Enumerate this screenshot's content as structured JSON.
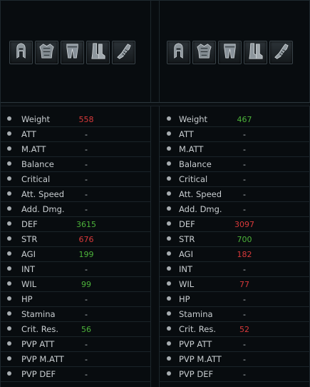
{
  "colors": {
    "better": "#4cb33a",
    "worse": "#d9393a",
    "neutral": "#b9bfc3",
    "label": "#c9ced1"
  },
  "sets": [
    {
      "gear_icons": [
        "helmet-icon",
        "chest-armor-icon",
        "leg-armor-icon",
        "boots-icon",
        "gauntlet-icon"
      ],
      "stats": [
        {
          "label": "Weight",
          "value": "558",
          "trend": "down"
        },
        {
          "label": "ATT",
          "value": "-",
          "trend": "none"
        },
        {
          "label": "M.ATT",
          "value": "-",
          "trend": "none"
        },
        {
          "label": "Balance",
          "value": "-",
          "trend": "none"
        },
        {
          "label": "Critical",
          "value": "-",
          "trend": "none"
        },
        {
          "label": "Att. Speed",
          "value": "-",
          "trend": "none"
        },
        {
          "label": "Add. Dmg.",
          "value": "-",
          "trend": "none"
        },
        {
          "label": "DEF",
          "value": "3615",
          "trend": "up"
        },
        {
          "label": "STR",
          "value": "676",
          "trend": "down"
        },
        {
          "label": "AGI",
          "value": "199",
          "trend": "up"
        },
        {
          "label": "INT",
          "value": "-",
          "trend": "none"
        },
        {
          "label": "WIL",
          "value": "99",
          "trend": "up"
        },
        {
          "label": "HP",
          "value": "-",
          "trend": "none"
        },
        {
          "label": "Stamina",
          "value": "-",
          "trend": "none"
        },
        {
          "label": "Crit. Res.",
          "value": "56",
          "trend": "up"
        },
        {
          "label": "PVP ATT",
          "value": "-",
          "trend": "none"
        },
        {
          "label": "PVP M.ATT",
          "value": "-",
          "trend": "none"
        },
        {
          "label": "PVP DEF",
          "value": "-",
          "trend": "none"
        }
      ]
    },
    {
      "gear_icons": [
        "helmet-icon",
        "chest-armor-icon",
        "leg-armor-icon",
        "boots-icon",
        "gauntlet-icon"
      ],
      "stats": [
        {
          "label": "Weight",
          "value": "467",
          "trend": "up"
        },
        {
          "label": "ATT",
          "value": "-",
          "trend": "none"
        },
        {
          "label": "M.ATT",
          "value": "-",
          "trend": "none"
        },
        {
          "label": "Balance",
          "value": "-",
          "trend": "none"
        },
        {
          "label": "Critical",
          "value": "-",
          "trend": "none"
        },
        {
          "label": "Att. Speed",
          "value": "-",
          "trend": "none"
        },
        {
          "label": "Add. Dmg.",
          "value": "-",
          "trend": "none"
        },
        {
          "label": "DEF",
          "value": "3097",
          "trend": "down"
        },
        {
          "label": "STR",
          "value": "700",
          "trend": "up"
        },
        {
          "label": "AGI",
          "value": "182",
          "trend": "down"
        },
        {
          "label": "INT",
          "value": "-",
          "trend": "none"
        },
        {
          "label": "WIL",
          "value": "77",
          "trend": "down"
        },
        {
          "label": "HP",
          "value": "-",
          "trend": "none"
        },
        {
          "label": "Stamina",
          "value": "-",
          "trend": "none"
        },
        {
          "label": "Crit. Res.",
          "value": "52",
          "trend": "down"
        },
        {
          "label": "PVP ATT",
          "value": "-",
          "trend": "none"
        },
        {
          "label": "PVP M.ATT",
          "value": "-",
          "trend": "none"
        },
        {
          "label": "PVP DEF",
          "value": "-",
          "trend": "none"
        }
      ]
    }
  ]
}
